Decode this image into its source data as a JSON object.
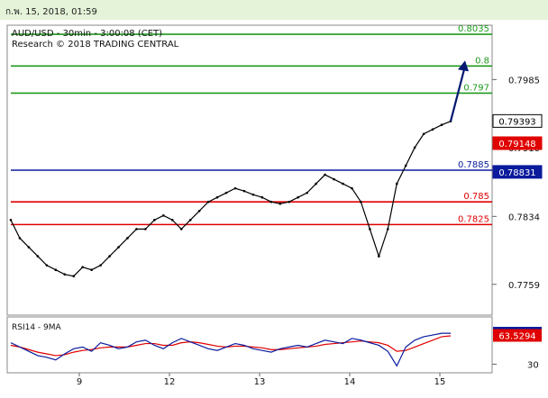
{
  "timestamp": "ก.พ. 15, 2018, 01:59",
  "header": {
    "line1": "AUD/USD - 30min - 3:00:08 (CET)",
    "line2": "Research © 2018 TRADING CENTRAL"
  },
  "colors": {
    "green": "#1e9a1e",
    "red": "#e00000",
    "blue": "#0b1b9c",
    "navy": "#001870",
    "badge_red": "#e00000",
    "badge_blue": "#0b1b9c",
    "price": "#000000"
  },
  "chart_data": {
    "type": "line",
    "price_axis": {
      "ticks": [
        {
          "value": 0.7985,
          "label": "0.7985"
        },
        {
          "value": 0.791,
          "label": "0.7910"
        },
        {
          "value": 0.7834,
          "label": "0.7834"
        },
        {
          "value": 0.7759,
          "label": "0.7759"
        }
      ],
      "ylim": [
        0.7725,
        0.8045
      ]
    },
    "x_ticks": [
      "9",
      "12",
      "13",
      "14",
      "15"
    ],
    "levels": [
      {
        "value": 0.8035,
        "label": "0.8035",
        "color": "green"
      },
      {
        "value": 0.8,
        "label": "0.8",
        "color": "green"
      },
      {
        "value": 0.797,
        "label": "0.797",
        "color": "green"
      },
      {
        "value": 0.7885,
        "label": "0.7885",
        "color": "blue"
      },
      {
        "value": 0.785,
        "label": "0.785",
        "color": "red"
      },
      {
        "value": 0.7825,
        "label": "0.7825",
        "color": "red"
      }
    ],
    "badges": [
      {
        "value": 0.79393,
        "label": "0.79393",
        "style": "price"
      },
      {
        "value": 0.79148,
        "label": "0.79148",
        "style": "red"
      },
      {
        "value": 0.78831,
        "label": "0.78831",
        "style": "blue"
      }
    ],
    "price_series": [
      0.783,
      0.781,
      0.78,
      0.779,
      0.778,
      0.7775,
      0.777,
      0.7768,
      0.7778,
      0.7775,
      0.778,
      0.779,
      0.78,
      0.781,
      0.782,
      0.782,
      0.783,
      0.7835,
      0.783,
      0.782,
      0.783,
      0.784,
      0.785,
      0.7855,
      0.786,
      0.7865,
      0.7862,
      0.7858,
      0.7855,
      0.785,
      0.7848,
      0.785,
      0.7855,
      0.786,
      0.787,
      0.788,
      0.7875,
      0.787,
      0.7865,
      0.785,
      0.782,
      0.779,
      0.782,
      0.787,
      0.789,
      0.791,
      0.7925,
      0.793,
      0.7935,
      0.7939
    ],
    "rsi": {
      "label": "RSI14 - 9MA",
      "ylim": [
        20,
        85
      ],
      "ticks": [
        {
          "value": 30,
          "label": "30"
        }
      ],
      "badges": [
        {
          "value": 66.1492,
          "label": "66.1492",
          "style": "blue"
        },
        {
          "value": 63.5294,
          "label": "63.5294",
          "style": "red"
        }
      ],
      "rsi_series": [
        55,
        50,
        45,
        40,
        38,
        35,
        42,
        48,
        50,
        45,
        55,
        52,
        48,
        50,
        56,
        58,
        52,
        48,
        55,
        60,
        56,
        52,
        48,
        46,
        50,
        54,
        52,
        48,
        46,
        44,
        48,
        50,
        52,
        50,
        54,
        58,
        56,
        54,
        60,
        58,
        55,
        52,
        45,
        28,
        50,
        58,
        62,
        64,
        66,
        66
      ],
      "ma_series": [
        52,
        50,
        47,
        44,
        42,
        40,
        41,
        44,
        46,
        47,
        49,
        50,
        50,
        50,
        52,
        54,
        54,
        52,
        52,
        55,
        56,
        55,
        53,
        51,
        50,
        51,
        51,
        50,
        49,
        47,
        47,
        48,
        49,
        50,
        51,
        53,
        54,
        55,
        56,
        57,
        56,
        55,
        52,
        45,
        46,
        50,
        54,
        58,
        62,
        63
      ]
    }
  }
}
